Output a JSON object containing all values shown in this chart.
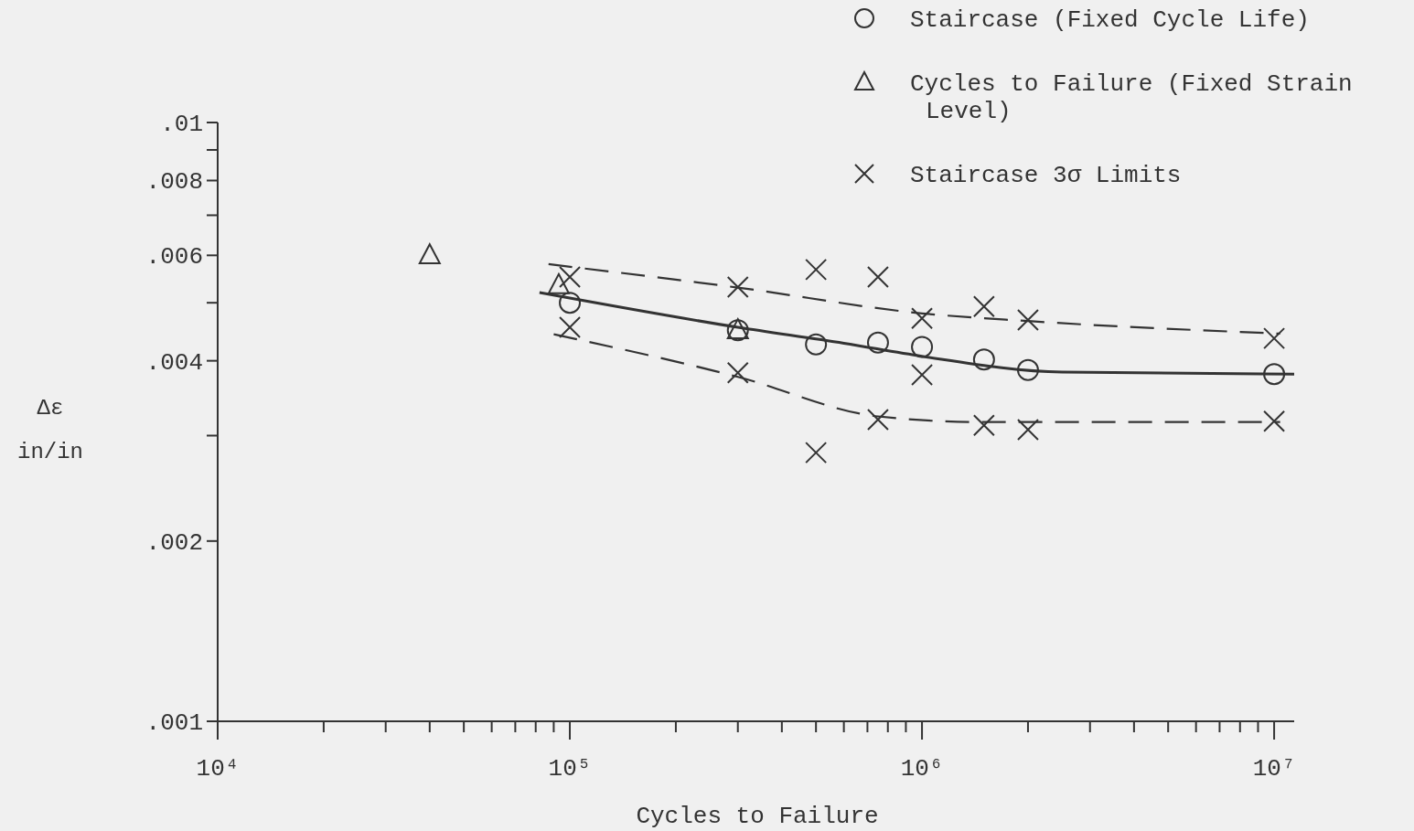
{
  "chart_data": {
    "type": "scatter",
    "xlabel": "Cycles to Failure",
    "ylabel": "Δε in/in",
    "log": "xy",
    "grid": false,
    "legend": "top right",
    "xlim": [
      10000,
      11400000
    ],
    "ylim": [
      0.001,
      0.01
    ],
    "xticks": [
      {
        "value": 10000,
        "label": "10⁴"
      },
      {
        "value": 20000,
        "label": null
      },
      {
        "value": 30000,
        "label": null
      },
      {
        "value": 40000,
        "label": null
      },
      {
        "value": 50000,
        "label": null
      },
      {
        "value": 60000,
        "label": null
      },
      {
        "value": 70000,
        "label": null
      },
      {
        "value": 80000,
        "label": null
      },
      {
        "value": 90000,
        "label": null
      },
      {
        "value": 100000,
        "label": "10⁵"
      },
      {
        "value": 200000,
        "label": null
      },
      {
        "value": 300000,
        "label": null
      },
      {
        "value": 400000,
        "label": null
      },
      {
        "value": 500000,
        "label": null
      },
      {
        "value": 600000,
        "label": null
      },
      {
        "value": 700000,
        "label": null
      },
      {
        "value": 800000,
        "label": null
      },
      {
        "value": 900000,
        "label": null
      },
      {
        "value": 1000000,
        "label": "10⁶"
      },
      {
        "value": 2000000,
        "label": null
      },
      {
        "value": 3000000,
        "label": null
      },
      {
        "value": 4000000,
        "label": null
      },
      {
        "value": 5000000,
        "label": null
      },
      {
        "value": 6000000,
        "label": null
      },
      {
        "value": 7000000,
        "label": null
      },
      {
        "value": 8000000,
        "label": null
      },
      {
        "value": 9000000,
        "label": null
      },
      {
        "value": 10000000,
        "label": "10⁷"
      }
    ],
    "yticks": [
      {
        "value": 0.001,
        "label": ".001"
      },
      {
        "value": 0.002,
        "label": ".002"
      },
      {
        "value": 0.003,
        "label": null
      },
      {
        "value": 0.004,
        "label": ".004"
      },
      {
        "value": 0.005,
        "label": null
      },
      {
        "value": 0.006,
        "label": ".006"
      },
      {
        "value": 0.007,
        "label": null
      },
      {
        "value": 0.008,
        "label": ".008"
      },
      {
        "value": 0.009,
        "label": null
      },
      {
        "value": 0.01,
        "label": ".01"
      }
    ],
    "series": [
      {
        "name": "Staircase (Fixed Cycle Life)",
        "marker": "circle",
        "color": "#333333",
        "x": [
          100000,
          300000,
          500000,
          750000,
          1000000,
          1500000,
          2000000,
          10000000
        ],
        "values": [
          0.005,
          0.0045,
          0.00426,
          0.00429,
          0.00422,
          0.00402,
          0.00386,
          0.0038
        ]
      },
      {
        "name": "Cycles to Failure (Fixed Strain Level)",
        "marker": "triangle",
        "color": "#333333",
        "x": [
          40000,
          93000,
          300000
        ],
        "values": [
          0.006,
          0.00535,
          0.0045
        ]
      },
      {
        "name": "Staircase 3σ Limits",
        "marker": "cross",
        "color": "#333333",
        "x": [
          100000,
          300000,
          500000,
          750000,
          1000000,
          1500000,
          2000000,
          10000000,
          100000,
          300000,
          500000,
          750000,
          1000000,
          1500000,
          2000000,
          10000000
        ],
        "values": [
          0.00552,
          0.00531,
          0.00568,
          0.00552,
          0.00471,
          0.00493,
          0.00468,
          0.00436,
          0.00455,
          0.00382,
          0.00281,
          0.00319,
          0.00379,
          0.00312,
          0.00307,
          0.00317
        ]
      },
      {
        "type": "line",
        "line_style": "solid",
        "color": "#333333",
        "x": [
          82000,
          300000,
          600000,
          1000000,
          2500000,
          11400000
        ],
        "values": [
          0.0052,
          0.00455,
          0.00428,
          0.00407,
          0.00383,
          0.0038
        ]
      },
      {
        "type": "line",
        "line_style": "dashed",
        "color": "#333333",
        "x": [
          87000,
          300000,
          1000000,
          2000000,
          10400000
        ],
        "values": [
          0.0058,
          0.0053,
          0.0048,
          0.00466,
          0.00444
        ]
      },
      {
        "type": "line",
        "line_style": "dashed",
        "color": "#333333",
        "x": [
          90000,
          300000,
          750000,
          1500000,
          10400000
        ],
        "values": [
          0.00443,
          0.00376,
          0.00323,
          0.00316,
          0.00316
        ]
      }
    ]
  }
}
